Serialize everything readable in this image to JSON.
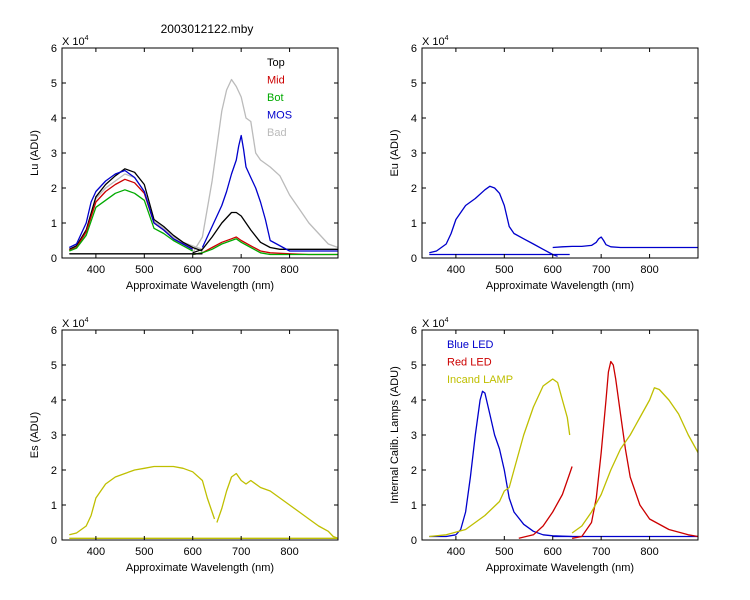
{
  "figure_title": "2003012122.mby",
  "exponent_base": "X 10",
  "exponent_power": "4",
  "chart_data": [
    {
      "id": "lu",
      "type": "line",
      "ylabel": "Lu (ADU)",
      "xlabel": "Approximate Wavelength (nm)",
      "xlim": [
        330,
        900
      ],
      "ylim": [
        0,
        6
      ],
      "xticks": [
        400,
        500,
        600,
        700,
        800
      ],
      "yticks": [
        0,
        1,
        2,
        3,
        4,
        5,
        6
      ],
      "legend_position": "top-right",
      "legend": [
        {
          "label": "Top",
          "color": "#000000"
        },
        {
          "label": "Mid",
          "color": "#cc0000"
        },
        {
          "label": "Bot",
          "color": "#00aa00"
        },
        {
          "label": "MOS",
          "color": "#0000cc"
        },
        {
          "label": "Bad",
          "color": "#bbbbbb"
        }
      ],
      "series": [
        {
          "name": "Bad (blue band)",
          "color": "#bbbbbb",
          "x": [
            345,
            360,
            380,
            400,
            420,
            440,
            460,
            480,
            500,
            520,
            540,
            560,
            580,
            600,
            620
          ],
          "y": [
            0.25,
            0.35,
            0.7,
            1.7,
            2.0,
            2.2,
            2.4,
            2.3,
            1.9,
            1.05,
            0.85,
            0.6,
            0.45,
            0.35,
            0.25
          ]
        },
        {
          "name": "Bad (red band)",
          "color": "#bbbbbb",
          "x": [
            600,
            620,
            640,
            660,
            670,
            680,
            690,
            700,
            710,
            720,
            730,
            740,
            760,
            780,
            800,
            820,
            840,
            860,
            880,
            900
          ],
          "y": [
            0.15,
            0.6,
            2.2,
            4.2,
            4.8,
            5.1,
            4.9,
            4.6,
            4.0,
            3.9,
            3.0,
            2.8,
            2.6,
            2.35,
            1.8,
            1.4,
            1.0,
            0.7,
            0.4,
            0.3
          ]
        },
        {
          "name": "Top (blue band)",
          "color": "#000000",
          "x": [
            345,
            360,
            380,
            400,
            420,
            440,
            460,
            480,
            500,
            520,
            540,
            560,
            580,
            600,
            620
          ],
          "y": [
            0.25,
            0.35,
            0.8,
            1.75,
            2.1,
            2.35,
            2.55,
            2.45,
            2.1,
            1.1,
            0.9,
            0.65,
            0.45,
            0.3,
            0.2
          ]
        },
        {
          "name": "Top (red band)",
          "color": "#000000",
          "x": [
            600,
            620,
            640,
            660,
            680,
            690,
            700,
            720,
            740,
            760,
            780,
            800,
            840,
            880,
            900
          ],
          "y": [
            0.15,
            0.25,
            0.6,
            1.0,
            1.3,
            1.3,
            1.2,
            0.8,
            0.45,
            0.3,
            0.25,
            0.25,
            0.25,
            0.25,
            0.25
          ]
        },
        {
          "name": "Mid (blue band)",
          "color": "#cc0000",
          "x": [
            345,
            360,
            380,
            400,
            420,
            440,
            460,
            480,
            500,
            520,
            540,
            560,
            580,
            600
          ],
          "y": [
            0.22,
            0.3,
            0.75,
            1.6,
            1.9,
            2.1,
            2.25,
            2.15,
            1.85,
            1.0,
            0.8,
            0.55,
            0.4,
            0.25
          ]
        },
        {
          "name": "Mid (red band)",
          "color": "#cc0000",
          "x": [
            600,
            620,
            640,
            660,
            680,
            690,
            700,
            720,
            740,
            760,
            800,
            840,
            900
          ],
          "y": [
            0.1,
            0.15,
            0.3,
            0.45,
            0.55,
            0.6,
            0.5,
            0.35,
            0.2,
            0.15,
            0.12,
            0.1,
            0.1
          ]
        },
        {
          "name": "Bot (blue band)",
          "color": "#00aa00",
          "x": [
            345,
            360,
            380,
            400,
            420,
            440,
            460,
            480,
            500,
            520,
            540,
            560,
            580,
            600
          ],
          "y": [
            0.2,
            0.28,
            0.65,
            1.45,
            1.65,
            1.85,
            1.95,
            1.85,
            1.65,
            0.85,
            0.7,
            0.5,
            0.35,
            0.2
          ]
        },
        {
          "name": "Bot (red band)",
          "color": "#00aa00",
          "x": [
            600,
            620,
            640,
            660,
            680,
            690,
            700,
            720,
            740,
            760,
            800,
            840,
            900
          ],
          "y": [
            0.1,
            0.15,
            0.25,
            0.4,
            0.5,
            0.55,
            0.45,
            0.3,
            0.15,
            0.1,
            0.1,
            0.1,
            0.1
          ]
        },
        {
          "name": "MOS (blue band)",
          "color": "#0000cc",
          "x": [
            345,
            360,
            380,
            390,
            400,
            420,
            440,
            460,
            480,
            500,
            520,
            540,
            560,
            580,
            600
          ],
          "y": [
            0.3,
            0.4,
            1.0,
            1.6,
            1.9,
            2.2,
            2.4,
            2.5,
            2.3,
            1.9,
            1.0,
            0.8,
            0.55,
            0.4,
            0.25
          ]
        },
        {
          "name": "MOS (red band)",
          "color": "#0000cc",
          "x": [
            620,
            640,
            660,
            670,
            680,
            690,
            695,
            700,
            705,
            710,
            720,
            730,
            740,
            750,
            760,
            800,
            900
          ],
          "y": [
            0.3,
            0.9,
            1.5,
            1.9,
            2.4,
            2.8,
            3.2,
            3.5,
            3.1,
            2.6,
            2.3,
            2.0,
            1.6,
            1.1,
            0.5,
            0.2,
            0.2
          ]
        },
        {
          "name": "Baseline",
          "color": "#000000",
          "x": [
            345,
            620
          ],
          "y": [
            0.12,
            0.12
          ]
        }
      ]
    },
    {
      "id": "eu",
      "type": "line",
      "ylabel": "Eu  (ADU)",
      "xlabel": "Approximate Wavelength (nm)",
      "xlim": [
        330,
        900
      ],
      "ylim": [
        0,
        6
      ],
      "xticks": [
        400,
        500,
        600,
        700,
        800
      ],
      "yticks": [
        0,
        1,
        2,
        3,
        4,
        5,
        6
      ],
      "series": [
        {
          "name": "Eu (blue band)",
          "color": "#0000cc",
          "x": [
            345,
            360,
            380,
            390,
            400,
            420,
            440,
            460,
            470,
            480,
            490,
            500,
            510,
            520,
            540,
            560,
            580,
            600,
            610
          ],
          "y": [
            0.15,
            0.2,
            0.4,
            0.7,
            1.1,
            1.5,
            1.7,
            1.95,
            2.05,
            2.0,
            1.85,
            1.5,
            0.9,
            0.7,
            0.55,
            0.4,
            0.25,
            0.1,
            0.05
          ]
        },
        {
          "name": "Eu (red band)",
          "color": "#0000cc",
          "x": [
            600,
            620,
            640,
            660,
            680,
            690,
            695,
            700,
            705,
            710,
            720,
            740,
            760,
            800,
            850,
            900
          ],
          "y": [
            0.3,
            0.32,
            0.33,
            0.33,
            0.36,
            0.45,
            0.55,
            0.6,
            0.5,
            0.38,
            0.32,
            0.3,
            0.3,
            0.3,
            0.3,
            0.3
          ]
        },
        {
          "name": "Eu baseline",
          "color": "#0000cc",
          "x": [
            345,
            635
          ],
          "y": [
            0.1,
            0.1
          ]
        }
      ]
    },
    {
      "id": "es",
      "type": "line",
      "ylabel": "Es  (ADU)",
      "xlabel": "Approximate Wavelength (nm)",
      "xlim": [
        330,
        900
      ],
      "ylim": [
        0,
        6
      ],
      "xticks": [
        400,
        500,
        600,
        700,
        800
      ],
      "yticks": [
        0,
        1,
        2,
        3,
        4,
        5,
        6
      ],
      "series": [
        {
          "name": "Es (blue band)",
          "color": "#bfbf00",
          "x": [
            345,
            360,
            380,
            390,
            400,
            420,
            440,
            460,
            480,
            500,
            520,
            540,
            560,
            580,
            600,
            620,
            630,
            640,
            645
          ],
          "y": [
            0.15,
            0.2,
            0.4,
            0.7,
            1.2,
            1.6,
            1.8,
            1.9,
            2.0,
            2.05,
            2.1,
            2.1,
            2.1,
            2.05,
            1.95,
            1.7,
            1.2,
            0.8,
            0.6
          ]
        },
        {
          "name": "Es (red band)",
          "color": "#bfbf00",
          "x": [
            650,
            660,
            670,
            680,
            690,
            700,
            710,
            720,
            740,
            760,
            780,
            800,
            820,
            840,
            860,
            880,
            890,
            900
          ],
          "y": [
            0.5,
            0.9,
            1.4,
            1.8,
            1.9,
            1.7,
            1.6,
            1.7,
            1.5,
            1.4,
            1.2,
            1.0,
            0.8,
            0.6,
            0.4,
            0.25,
            0.1,
            0.05
          ]
        },
        {
          "name": "Es baseline",
          "color": "#bfbf00",
          "x": [
            345,
            900
          ],
          "y": [
            0.05,
            0.05
          ]
        }
      ]
    },
    {
      "id": "cal",
      "type": "line",
      "ylabel": "Internal Calib. Lamps (ADU)",
      "xlabel": "Approximate Wavelength (nm)",
      "xlim": [
        330,
        900
      ],
      "ylim": [
        0,
        6
      ],
      "xticks": [
        400,
        500,
        600,
        700,
        800
      ],
      "yticks": [
        0,
        1,
        2,
        3,
        4,
        5,
        6
      ],
      "legend_position": "top-left",
      "legend": [
        {
          "label": "Blue LED",
          "color": "#0000cc"
        },
        {
          "label": "Red LED",
          "color": "#cc0000"
        },
        {
          "label": "Incand LAMP",
          "color": "#bfbf00"
        }
      ],
      "series": [
        {
          "name": "Blue LED",
          "color": "#0000cc",
          "x": [
            345,
            380,
            400,
            410,
            420,
            430,
            440,
            450,
            455,
            460,
            470,
            480,
            490,
            500,
            510,
            520,
            540,
            560,
            580,
            600,
            640
          ],
          "y": [
            0.1,
            0.1,
            0.15,
            0.3,
            0.8,
            1.8,
            3.0,
            4.0,
            4.25,
            4.2,
            3.6,
            3.0,
            2.6,
            2.0,
            1.2,
            0.8,
            0.45,
            0.25,
            0.15,
            0.12,
            0.1
          ]
        },
        {
          "name": "Blue LED baseline",
          "color": "#0000cc",
          "x": [
            600,
            900
          ],
          "y": [
            0.1,
            0.1
          ]
        },
        {
          "name": "Red LED",
          "color": "#cc0000",
          "x": [
            530,
            560,
            580,
            600,
            620,
            635,
            640
          ],
          "y": [
            0.05,
            0.15,
            0.4,
            0.8,
            1.3,
            1.9,
            2.1
          ]
        },
        {
          "name": "Red LED band",
          "color": "#cc0000",
          "x": [
            640,
            660,
            680,
            690,
            700,
            710,
            715,
            720,
            725,
            730,
            740,
            750,
            760,
            780,
            800,
            840,
            880,
            900
          ],
          "y": [
            0.05,
            0.1,
            0.5,
            1.2,
            2.5,
            4.0,
            4.8,
            5.1,
            5.0,
            4.6,
            3.6,
            2.6,
            1.8,
            1.0,
            0.6,
            0.3,
            0.15,
            0.1
          ]
        },
        {
          "name": "Incand LAMP",
          "color": "#bfbf00",
          "x": [
            345,
            380,
            420,
            460,
            490,
            500,
            510,
            520,
            540,
            560,
            580,
            600,
            610,
            620,
            630,
            635
          ],
          "y": [
            0.1,
            0.15,
            0.3,
            0.7,
            1.1,
            1.4,
            1.5,
            2.0,
            3.0,
            3.8,
            4.4,
            4.6,
            4.5,
            4.0,
            3.5,
            3.0
          ]
        },
        {
          "name": "Incand LAMP (red band)",
          "color": "#bfbf00",
          "x": [
            640,
            660,
            680,
            700,
            720,
            740,
            760,
            780,
            800,
            810,
            820,
            840,
            860,
            880,
            900
          ],
          "y": [
            0.2,
            0.4,
            0.8,
            1.3,
            2.0,
            2.6,
            3.0,
            3.5,
            4.0,
            4.35,
            4.3,
            4.0,
            3.6,
            3.0,
            2.5
          ]
        }
      ]
    }
  ]
}
